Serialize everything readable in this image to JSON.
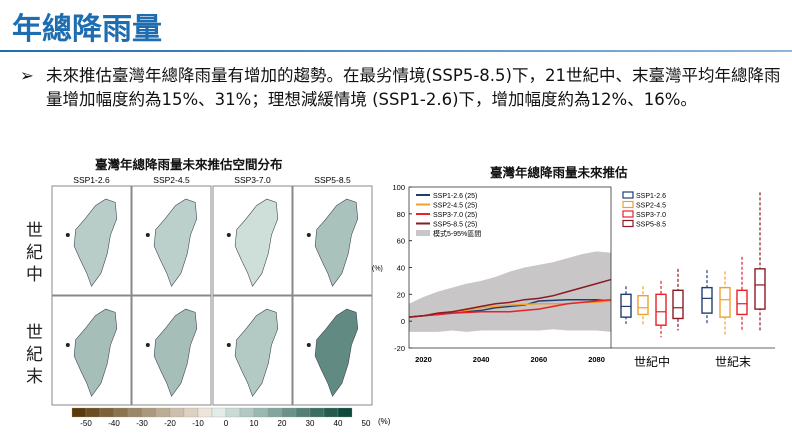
{
  "slide": {
    "title": "年總降雨量",
    "bullet_marker": "➢",
    "bullet": "未來推估臺灣年總降雨量有增加的趨勢。在最劣情境(SSP5-8.5)下，21世紀中、末臺灣平均年總降雨量增加幅度約為15%、31%；理想減緩情境 (SSP1-2.6)下，增加幅度約為12%、16%。"
  },
  "map_figure": {
    "title": "臺灣年總降雨量未來推估空間分布",
    "columns": [
      "SSP1-2.6",
      "SSP2-4.5",
      "SSP3-7.0",
      "SSP5-8.5"
    ],
    "rows": [
      "世紀中",
      "世紀末"
    ],
    "change_percent": [
      [
        12,
        11,
        7,
        15
      ],
      [
        16,
        16,
        13,
        31
      ]
    ],
    "colorbar": {
      "ticks": [
        "-50",
        "-40",
        "-30",
        "-20",
        "-10",
        "0",
        "10",
        "20",
        "30",
        "40",
        "50"
      ],
      "unit": "(%)",
      "neg_color": "#5a3a0a",
      "pos_color": "#0b4a3c"
    }
  },
  "chart_data": [
    {
      "type": "line",
      "title": "臺灣年總降雨量未來推估",
      "ylabel": "(%)",
      "xlim": [
        2015,
        2085
      ],
      "ylim": [
        -20,
        100
      ],
      "xticks": [
        "2020",
        "2040",
        "2060",
        "2080"
      ],
      "yticks": [
        "-20",
        "0",
        "20",
        "40",
        "60",
        "80",
        "100"
      ],
      "x": [
        2015,
        2020,
        2025,
        2030,
        2035,
        2040,
        2045,
        2050,
        2055,
        2060,
        2065,
        2070,
        2075,
        2080,
        2085
      ],
      "series": [
        {
          "name": "SSP1-2.6 (25)",
          "color": "#1f3f73",
          "values": [
            3,
            4,
            5,
            6,
            7,
            8,
            10,
            11,
            12,
            15,
            15.5,
            16,
            16,
            16,
            15
          ]
        },
        {
          "name": "SSP2-4.5 (25)",
          "color": "#f0a030",
          "values": [
            3,
            4,
            6,
            7,
            8,
            10,
            11,
            12,
            12.5,
            13,
            13,
            13,
            14,
            14,
            15
          ]
        },
        {
          "name": "SSP3-7.0 (25)",
          "color": "#e8202a",
          "values": [
            3,
            4,
            5,
            6,
            6.5,
            7,
            7,
            7,
            8,
            9,
            11,
            13,
            14,
            15,
            16
          ]
        },
        {
          "name": "SSP5-8.5 (25)",
          "color": "#8a1a24",
          "values": [
            3,
            4,
            6,
            7,
            9,
            11,
            13,
            14,
            16,
            17,
            19,
            22,
            25,
            28,
            31
          ]
        }
      ],
      "band": {
        "name": "模式5-95%區間",
        "color": "#c8c6c6",
        "lower": [
          -8,
          -8,
          -8,
          -7,
          -8,
          -7,
          -7,
          -7,
          -7,
          -7,
          -6,
          -7,
          -7,
          -7,
          -8
        ],
        "upper": [
          13,
          18,
          22,
          25,
          28,
          30,
          33,
          37,
          40,
          42,
          44,
          47,
          50,
          52,
          51
        ]
      }
    },
    {
      "type": "box",
      "categories": [
        "世紀中",
        "世紀末"
      ],
      "series": [
        {
          "name": "SSP1-2.6",
          "color": "#1f3f73",
          "stats": [
            {
              "min": -2,
              "q1": 3,
              "median": 11,
              "q3": 20,
              "max": 26
            },
            {
              "min": -2,
              "q1": 6,
              "median": 17,
              "q3": 25,
              "max": 38
            }
          ]
        },
        {
          "name": "SSP2-4.5",
          "color": "#f0a030",
          "stats": [
            {
              "min": -3,
              "q1": 5,
              "median": 10,
              "q3": 19,
              "max": 26
            },
            {
              "min": -10,
              "q1": 3,
              "median": 16,
              "q3": 25,
              "max": 37
            }
          ]
        },
        {
          "name": "SSP3-7.0",
          "color": "#e8202a",
          "stats": [
            {
              "min": -12,
              "q1": -3,
              "median": 7,
              "q3": 20,
              "max": 30
            },
            {
              "min": -7,
              "q1": 5,
              "median": 13,
              "q3": 23,
              "max": 48
            }
          ]
        },
        {
          "name": "SSP5-8.5",
          "color": "#8a1a24",
          "stats": [
            {
              "min": -7,
              "q1": 2,
              "median": 10,
              "q3": 23,
              "max": 39
            },
            {
              "min": -8,
              "q1": 9,
              "median": 27,
              "q3": 39,
              "max": 96
            }
          ]
        }
      ]
    }
  ]
}
